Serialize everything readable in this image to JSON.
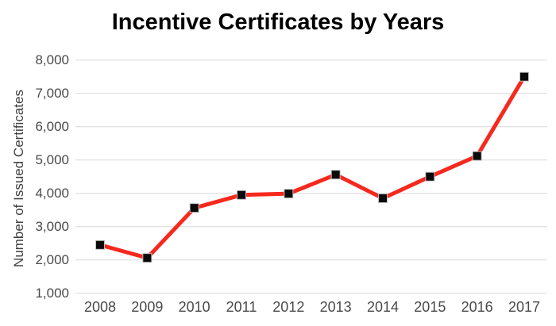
{
  "chart_data": {
    "type": "line",
    "title": "Incentive Certificates by Years",
    "xlabel": "",
    "ylabel": "Number of Issued Certificates",
    "categories": [
      "2008",
      "2009",
      "2010",
      "2011",
      "2012",
      "2013",
      "2014",
      "2015",
      "2016",
      "2017"
    ],
    "values": [
      2450,
      2060,
      3560,
      3950,
      3990,
      4560,
      3850,
      4500,
      5120,
      7500
    ],
    "ylim": [
      1000,
      8000
    ],
    "yticks": [
      {
        "value": 1000,
        "label": "1,000"
      },
      {
        "value": 2000,
        "label": "2,000"
      },
      {
        "value": 3000,
        "label": "3,000"
      },
      {
        "value": 4000,
        "label": "4,000"
      },
      {
        "value": 5000,
        "label": "5,000"
      },
      {
        "value": 6000,
        "label": "6,000"
      },
      {
        "value": 7000,
        "label": "7,000"
      },
      {
        "value": 8000,
        "label": "8,000"
      }
    ],
    "grid": "horizontal",
    "legend": "none",
    "marker": "square",
    "colors": {
      "line": "#f5291d",
      "marker_fill": "#0a0a0a",
      "marker_outline": "#bfbfbf",
      "gridline": "#d9d9d9",
      "tick_text": "#4a4a4a",
      "axis_title_text": "#404040",
      "title_text": "#000000",
      "background": "#ffffff"
    }
  }
}
